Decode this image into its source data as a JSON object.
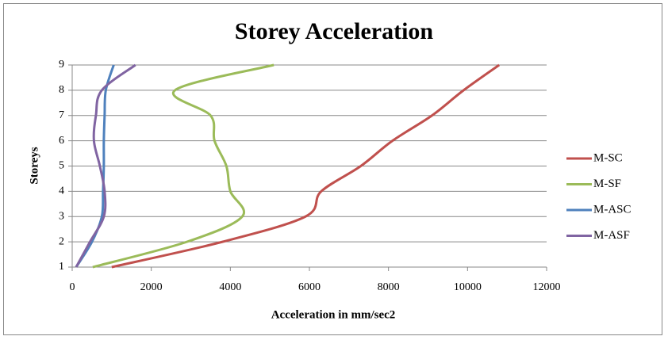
{
  "chart_data": {
    "type": "line",
    "title": "Storey Acceleration",
    "x_label": "Acceleration in mm/sec2",
    "y_label": "Storeys",
    "y": [
      1,
      2,
      3,
      4,
      5,
      6,
      7,
      8,
      9
    ],
    "series": [
      {
        "name": "M-SC",
        "color": "#c0504d",
        "values": [
          1000,
          3800,
          5900,
          6300,
          7300,
          8100,
          9100,
          9900,
          10800
        ]
      },
      {
        "name": "M-SF",
        "color": "#9bbb59",
        "values": [
          520,
          2900,
          4300,
          4000,
          3900,
          3600,
          3500,
          2600,
          5100
        ]
      },
      {
        "name": "M-ASC",
        "color": "#4f81bd",
        "values": [
          100,
          500,
          750,
          780,
          800,
          800,
          820,
          850,
          1050
        ]
      },
      {
        "name": "M-ASF",
        "color": "#8064a2",
        "values": [
          100,
          450,
          800,
          820,
          700,
          550,
          600,
          750,
          1600
        ]
      }
    ],
    "xlim": [
      0,
      12000
    ],
    "xticks": [
      0,
      2000,
      4000,
      6000,
      8000,
      10000,
      12000
    ],
    "ylim": [
      1,
      9
    ],
    "yticks": [
      1,
      2,
      3,
      4,
      5,
      6,
      7,
      8,
      9
    ],
    "grid": true,
    "legend": "right"
  }
}
